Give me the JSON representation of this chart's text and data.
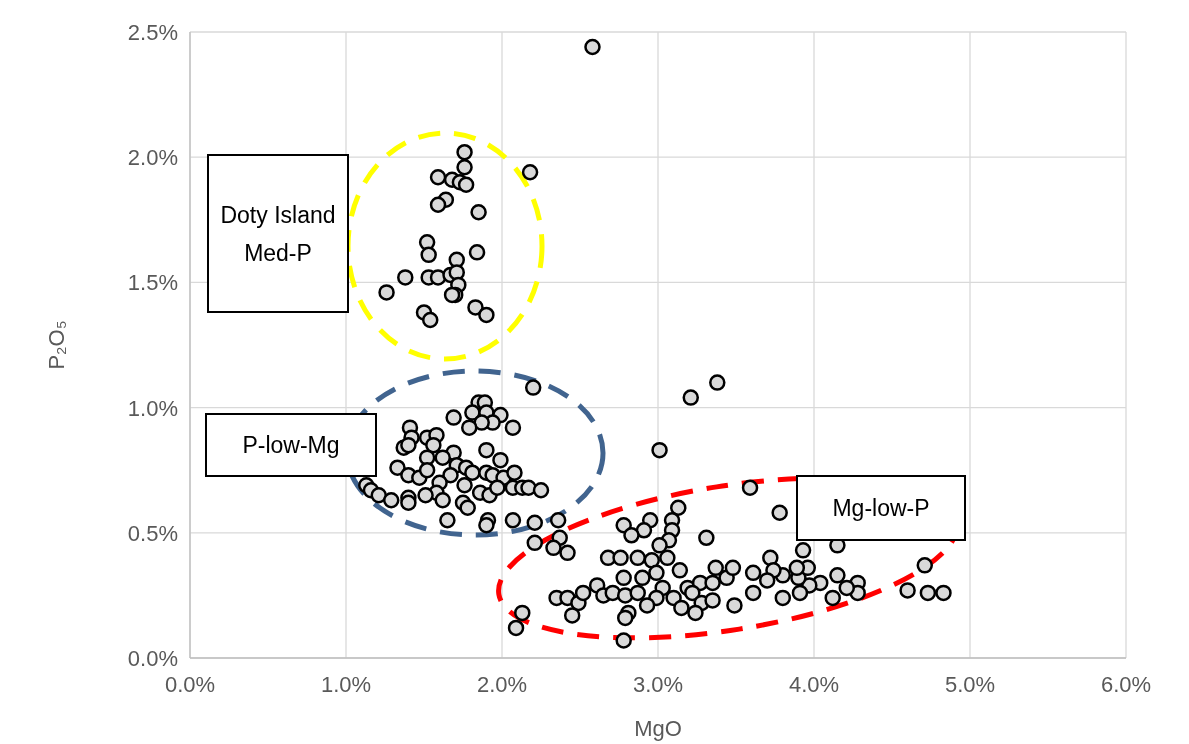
{
  "chart_data": {
    "type": "scatter",
    "xlabel": "MgO",
    "ylabel": "P₂O₅",
    "xlim": [
      0,
      6
    ],
    "ylim": [
      0,
      2.5
    ],
    "xticks": [
      {
        "value": 0,
        "label": "0.0%"
      },
      {
        "value": 1,
        "label": "1.0%"
      },
      {
        "value": 2,
        "label": "2.0%"
      },
      {
        "value": 3,
        "label": "3.0%"
      },
      {
        "value": 4,
        "label": "4.0%"
      },
      {
        "value": 5,
        "label": "5.0%"
      },
      {
        "value": 6,
        "label": "6.0%"
      }
    ],
    "yticks": [
      {
        "value": 0,
        "label": "0.0%"
      },
      {
        "value": 0.5,
        "label": "0.5%"
      },
      {
        "value": 1,
        "label": "1.0%"
      },
      {
        "value": 1.5,
        "label": "1.5%"
      },
      {
        "value": 2,
        "label": "2.0%"
      },
      {
        "value": 2.5,
        "label": "2.5%"
      }
    ],
    "grid": true,
    "marker": "circle",
    "annotations": [
      "Doty Island\nMed-P",
      "P-low-Mg",
      "Mg-low-P"
    ],
    "series": [
      {
        "color": "#d9d9d9",
        "x": [
          1.76,
          1.76,
          1.59,
          1.68,
          1.73,
          1.77,
          2.58,
          2.18,
          1.64,
          1.59,
          1.85,
          1.52,
          1.53,
          1.84,
          1.71,
          1.38,
          1.53,
          1.59,
          1.67,
          1.71,
          1.72,
          1.7,
          1.26,
          1.5,
          1.54,
          1.83,
          1.9,
          1.68,
          2.2,
          1.85,
          1.89,
          1.81,
          1.9,
          1.99,
          1.94,
          1.87,
          1.79,
          1.69,
          2.07,
          1.41,
          1.42,
          1.37,
          1.4,
          1.52,
          1.58,
          1.56,
          1.52,
          1.69,
          1.62,
          1.9,
          1.99,
          1.33,
          1.4,
          1.47,
          1.52,
          1.71,
          1.77,
          1.67,
          1.81,
          1.9,
          1.94,
          2.01,
          2.08,
          1.76,
          1.6,
          1.58,
          1.51,
          1.62,
          1.75,
          1.78,
          1.86,
          1.92,
          1.97,
          2.07,
          2.13,
          2.17,
          2.25,
          1.13,
          1.16,
          1.21,
          1.29,
          1.4,
          1.4,
          1.65,
          1.91,
          1.9,
          2.07,
          2.21,
          2.36,
          2.21,
          2.37,
          2.33,
          2.42,
          2.13,
          2.09,
          3.59,
          3.13,
          2.95,
          2.91,
          2.78,
          2.83,
          3.09,
          3.09,
          3.07,
          3.01,
          3.31,
          2.68,
          2.76,
          2.87,
          2.96,
          3.06,
          2.78,
          2.9,
          2.99,
          3.14,
          3.03,
          3.19,
          3.27,
          3.35,
          3.44,
          3.48,
          3.37,
          3.61,
          2.61,
          2.65,
          2.71,
          2.79,
          2.87,
          2.99,
          3.1,
          3.15,
          3.22,
          3.28,
          3.35,
          3.49,
          3.61,
          2.93,
          3.24,
          2.81,
          2.79,
          2.78,
          2.35,
          2.42,
          2.49,
          2.52,
          2.45,
          3.78,
          4.15,
          3.93,
          4.71,
          4.6,
          4.73,
          4.83,
          4.28,
          4.28,
          4.15,
          4.12,
          4.21,
          4.04,
          3.97,
          3.9,
          3.8,
          3.72,
          3.74,
          3.91,
          3.8,
          3.7,
          3.96,
          3.89,
          3.38,
          3.21,
          3.01
        ],
        "values": [
          2.02,
          1.96,
          1.92,
          1.91,
          1.9,
          1.89,
          2.44,
          1.94,
          1.83,
          1.81,
          1.78,
          1.66,
          1.61,
          1.62,
          1.59,
          1.52,
          1.52,
          1.52,
          1.53,
          1.54,
          1.49,
          1.45,
          1.46,
          1.38,
          1.35,
          1.4,
          1.37,
          1.45,
          1.08,
          1.02,
          1.02,
          0.98,
          0.98,
          0.97,
          0.94,
          0.94,
          0.92,
          0.96,
          0.92,
          0.92,
          0.88,
          0.84,
          0.85,
          0.88,
          0.89,
          0.85,
          0.8,
          0.82,
          0.8,
          0.83,
          0.79,
          0.76,
          0.73,
          0.72,
          0.75,
          0.77,
          0.76,
          0.73,
          0.74,
          0.74,
          0.73,
          0.72,
          0.74,
          0.69,
          0.7,
          0.66,
          0.65,
          0.63,
          0.62,
          0.6,
          0.66,
          0.65,
          0.68,
          0.68,
          0.68,
          0.68,
          0.67,
          0.69,
          0.67,
          0.65,
          0.63,
          0.64,
          0.62,
          0.55,
          0.55,
          0.53,
          0.55,
          0.54,
          0.55,
          0.46,
          0.48,
          0.44,
          0.42,
          0.18,
          0.12,
          0.68,
          0.6,
          0.55,
          0.51,
          0.53,
          0.49,
          0.55,
          0.51,
          0.47,
          0.45,
          0.48,
          0.4,
          0.4,
          0.4,
          0.39,
          0.4,
          0.32,
          0.32,
          0.34,
          0.35,
          0.28,
          0.28,
          0.3,
          0.3,
          0.32,
          0.36,
          0.36,
          0.34,
          0.29,
          0.25,
          0.26,
          0.25,
          0.26,
          0.24,
          0.24,
          0.2,
          0.26,
          0.22,
          0.23,
          0.21,
          0.26,
          0.21,
          0.18,
          0.18,
          0.16,
          0.07,
          0.24,
          0.24,
          0.22,
          0.26,
          0.17,
          0.58,
          0.45,
          0.43,
          0.37,
          0.27,
          0.26,
          0.26,
          0.3,
          0.26,
          0.33,
          0.24,
          0.28,
          0.3,
          0.29,
          0.32,
          0.33,
          0.4,
          0.35,
          0.26,
          0.24,
          0.31,
          0.36,
          0.36,
          1.1,
          1.04,
          0.83
        ]
      }
    ]
  }
}
